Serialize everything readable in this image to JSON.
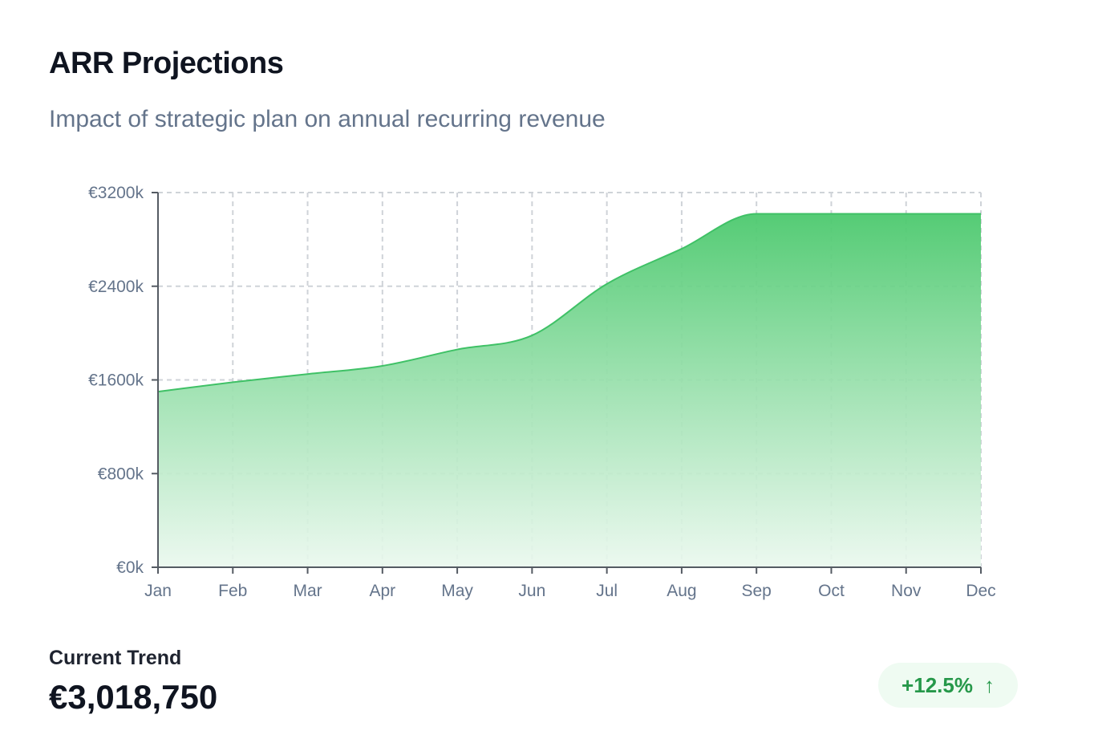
{
  "header": {
    "title": "ARR Projections",
    "subtitle": "Impact of strategic plan on annual recurring revenue"
  },
  "chart_data": {
    "type": "area",
    "categories": [
      "Jan",
      "Feb",
      "Mar",
      "Apr",
      "May",
      "Jun",
      "Jul",
      "Aug",
      "Sep",
      "Oct",
      "Nov",
      "Dec"
    ],
    "values": [
      1500,
      1580,
      1650,
      1720,
      1860,
      1980,
      2420,
      2720,
      3018.75,
      3018.75,
      3018.75,
      3018.75
    ],
    "y_ticks": [
      "€0k",
      "€800k",
      "€1600k",
      "€2400k",
      "€3200k"
    ],
    "y_tick_values": [
      0,
      800,
      1600,
      2400,
      3200
    ],
    "ylim": [
      0,
      3200
    ],
    "title": "",
    "xlabel": "",
    "ylabel": "",
    "grid": true,
    "colors": {
      "line": "#3fc166",
      "fill_top": "#4cc96e",
      "fill_bottom": "#eaf8ee",
      "grid": "#cfd3d8",
      "axis": "#555b63"
    }
  },
  "summary": {
    "trend_label": "Current Trend",
    "trend_value": "€3,018,750",
    "change": "+12.5%",
    "change_icon": "arrow-up-icon",
    "badge_color": "#26984a"
  }
}
